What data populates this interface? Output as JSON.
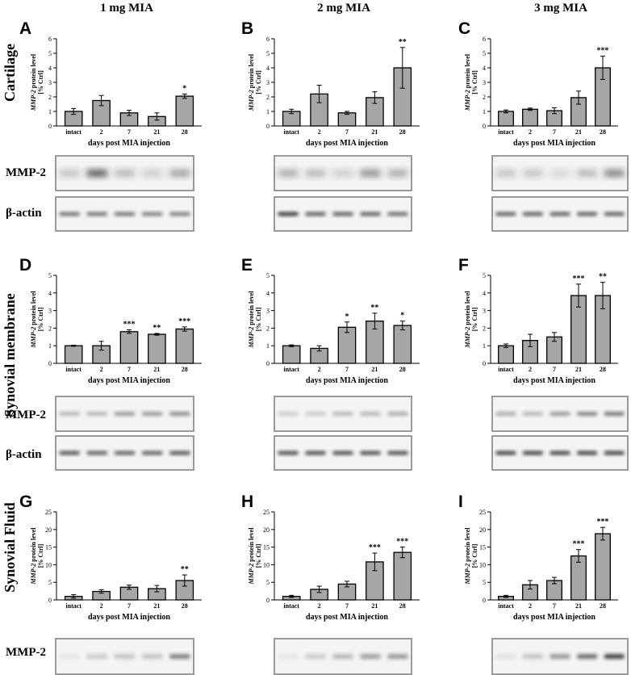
{
  "columns": [
    "1 mg MIA",
    "2 mg MIA",
    "3 mg MIA"
  ],
  "rows": [
    "Cartilage",
    "Synovial membrane",
    "Synovial Fluid"
  ],
  "blot_labels": {
    "mmp2": "MMP-2",
    "actin": "β-actin"
  },
  "chart_data": [
    {
      "panel": "A",
      "type": "bar",
      "categories": [
        "intact",
        "2",
        "7",
        "21",
        "28"
      ],
      "values": [
        1.0,
        1.75,
        0.9,
        0.65,
        2.05
      ],
      "errors": [
        0.2,
        0.35,
        0.18,
        0.25,
        0.15
      ],
      "significance": [
        "",
        "",
        "",
        "",
        "*"
      ],
      "ylim": [
        0,
        6
      ],
      "yticks": [
        0,
        1,
        2,
        3,
        4,
        5,
        6
      ],
      "ylabel_italic": "MMP-2",
      "ylabel_rest": " protein level",
      "ylabel2": "[% Ctrl]",
      "xlabel": "days post MIA injection"
    },
    {
      "panel": "B",
      "type": "bar",
      "categories": [
        "intact",
        "2",
        "7",
        "21",
        "28"
      ],
      "values": [
        1.0,
        2.2,
        0.9,
        1.95,
        4.0
      ],
      "errors": [
        0.15,
        0.6,
        0.1,
        0.4,
        1.4
      ],
      "significance": [
        "",
        "",
        "",
        "",
        "**"
      ],
      "ylim": [
        0,
        6
      ],
      "yticks": [
        0,
        1,
        2,
        3,
        4,
        5,
        6
      ],
      "ylabel_italic": "MMP-2",
      "ylabel_rest": " protein level",
      "ylabel2": "[% Ctrl]",
      "xlabel": "days post MIA injection"
    },
    {
      "panel": "C",
      "type": "bar",
      "categories": [
        "intact",
        "2",
        "7",
        "21",
        "28"
      ],
      "values": [
        1.0,
        1.15,
        1.05,
        1.95,
        4.0
      ],
      "errors": [
        0.1,
        0.08,
        0.2,
        0.45,
        0.8
      ],
      "significance": [
        "",
        "",
        "",
        "",
        "***"
      ],
      "ylim": [
        0,
        6
      ],
      "yticks": [
        0,
        1,
        2,
        3,
        4,
        5,
        6
      ],
      "ylabel_italic": "MMP-2",
      "ylabel_rest": " protein level",
      "ylabel2": "[% Ctrl]",
      "xlabel": "days post MIA injection"
    },
    {
      "panel": "D",
      "type": "bar",
      "categories": [
        "intact",
        "2",
        "7",
        "21",
        "28"
      ],
      "values": [
        1.0,
        1.0,
        1.8,
        1.65,
        1.95
      ],
      "errors": [
        0.03,
        0.25,
        0.1,
        0.05,
        0.12
      ],
      "significance": [
        "",
        "",
        "***",
        "**",
        "***"
      ],
      "ylim": [
        0,
        5
      ],
      "yticks": [
        0,
        1,
        2,
        3,
        4,
        5
      ],
      "ylabel_italic": "MMP-2",
      "ylabel_rest": " protein level",
      "ylabel2": "[% Ctrl]",
      "xlabel": "days post MIA injection"
    },
    {
      "panel": "E",
      "type": "bar",
      "categories": [
        "intact",
        "2",
        "7",
        "21",
        "28"
      ],
      "values": [
        1.0,
        0.85,
        2.05,
        2.4,
        2.15
      ],
      "errors": [
        0.05,
        0.15,
        0.3,
        0.45,
        0.25
      ],
      "significance": [
        "",
        "",
        "*",
        "**",
        "*"
      ],
      "ylim": [
        0,
        5
      ],
      "yticks": [
        0,
        1,
        2,
        3,
        4,
        5
      ],
      "ylabel_italic": "MMP-2",
      "ylabel_rest": " protein level",
      "ylabel2": "[% Ctrl]",
      "xlabel": "days post MIA injection"
    },
    {
      "panel": "F",
      "type": "bar",
      "categories": [
        "intact",
        "2",
        "7",
        "21",
        "28"
      ],
      "values": [
        1.0,
        1.3,
        1.5,
        3.85,
        3.85
      ],
      "errors": [
        0.1,
        0.35,
        0.25,
        0.65,
        0.75
      ],
      "significance": [
        "",
        "",
        "",
        "***",
        "**"
      ],
      "ylim": [
        0,
        5
      ],
      "yticks": [
        0,
        1,
        2,
        3,
        4,
        5
      ],
      "ylabel_italic": "MMP-2",
      "ylabel_rest": " protein level",
      "ylabel2": "[% Ctrl]",
      "xlabel": "days post MIA injection"
    },
    {
      "panel": "G",
      "type": "bar",
      "categories": [
        "intact",
        "2",
        "7",
        "21",
        "28"
      ],
      "values": [
        1.0,
        2.4,
        3.6,
        3.2,
        5.5
      ],
      "errors": [
        0.5,
        0.5,
        0.6,
        0.9,
        1.6
      ],
      "significance": [
        "",
        "",
        "",
        "",
        "**"
      ],
      "ylim": [
        0,
        25
      ],
      "yticks": [
        0,
        5,
        10,
        15,
        20,
        25
      ],
      "ylabel_italic": "MMP-2",
      "ylabel_rest": " protein level",
      "ylabel2": "[% Ctrl]",
      "xlabel": "days post MIA injection"
    },
    {
      "panel": "H",
      "type": "bar",
      "categories": [
        "intact",
        "2",
        "7",
        "21",
        "28"
      ],
      "values": [
        1.0,
        3.0,
        4.5,
        10.8,
        13.5
      ],
      "errors": [
        0.3,
        0.9,
        0.8,
        2.5,
        1.5
      ],
      "significance": [
        "",
        "",
        "",
        "***",
        "***"
      ],
      "ylim": [
        0,
        25
      ],
      "yticks": [
        0,
        5,
        10,
        15,
        20,
        25
      ],
      "ylabel_italic": "MMP-2",
      "ylabel_rest": " protein level",
      "ylabel2": "[% Ctrl]",
      "xlabel": "days post MIA injection"
    },
    {
      "panel": "I",
      "type": "bar",
      "categories": [
        "intact",
        "2",
        "7",
        "21",
        "28"
      ],
      "values": [
        1.0,
        4.3,
        5.5,
        12.5,
        18.8
      ],
      "errors": [
        0.3,
        1.2,
        0.9,
        1.8,
        1.8
      ],
      "significance": [
        "",
        "",
        "",
        "***",
        "***"
      ],
      "ylim": [
        0,
        25
      ],
      "yticks": [
        0,
        5,
        10,
        15,
        20,
        25
      ],
      "ylabel_italic": "MMP-2",
      "ylabel_rest": " protein level",
      "ylabel2": "[% Ctrl]",
      "xlabel": "days post MIA injection"
    }
  ]
}
